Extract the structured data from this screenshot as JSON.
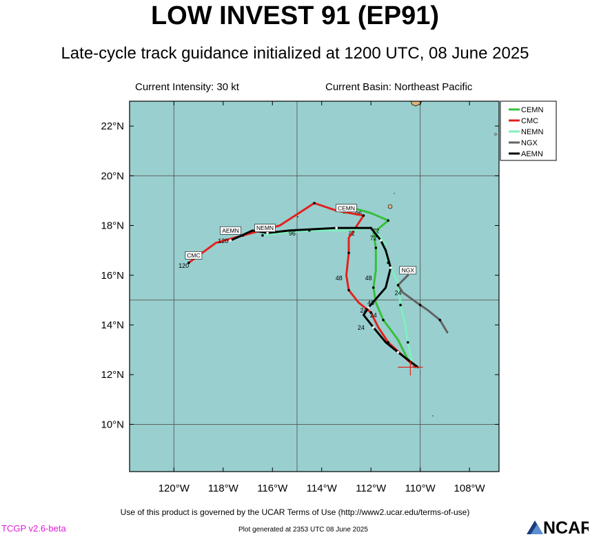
{
  "title": "LOW INVEST 91 (EP91)",
  "subtitle": "Late-cycle track guidance initialized at 1200 UTC, 08 June 2025",
  "header": {
    "intensity": "Current Intensity: 30 kt",
    "basin": "Current Basin: Northeast Pacific"
  },
  "axes": {
    "x_ticks": [
      "120°W",
      "118°W",
      "116°W",
      "114°W",
      "112°W",
      "110°W",
      "108°W"
    ],
    "y_ticks": [
      "22°N",
      "20°N",
      "18°N",
      "16°N",
      "14°N",
      "12°N",
      "10°N"
    ]
  },
  "colors": {
    "ocean": "#99cfcf",
    "land": "#d9b37a",
    "CEMN": "#35c13a",
    "CMC": "#e3211c",
    "NEMN": "#7fefbf",
    "NGX": "#636363",
    "AEMN": "#000000",
    "version": "#e01bd6"
  },
  "initial_position": {
    "lon": -110.4,
    "lat": 12.3
  },
  "tracks": [
    {
      "name": "CEMN",
      "color": "#35c13a",
      "points": [
        [
          -110.1,
          12.3
        ],
        [
          -110.5,
          12.6
        ],
        [
          -110.9,
          13.4
        ],
        [
          -111.5,
          14.2
        ],
        [
          -111.8,
          14.9
        ],
        [
          -111.9,
          15.5
        ],
        [
          -111.8,
          16.2
        ],
        [
          -111.8,
          17.1
        ],
        [
          -111.9,
          17.7
        ],
        [
          -111.3,
          18.2
        ],
        [
          -112.0,
          18.5
        ],
        [
          -112.7,
          18.7
        ],
        [
          -113.1,
          18.5
        ]
      ],
      "time_labels": [
        {
          "text": "48",
          "lon": -112.1,
          "lat": 15.8
        },
        {
          "text": "72",
          "lon": -111.8,
          "lat": 17.7
        },
        {
          "text": "96",
          "lon": -112.5,
          "lat": 18.4
        }
      ]
    },
    {
      "name": "CMC",
      "color": "#e3211c",
      "points": [
        [
          -110.2,
          12.3
        ],
        [
          -111.3,
          13.3
        ],
        [
          -111.7,
          13.9
        ],
        [
          -112.0,
          14.5
        ],
        [
          -112.5,
          14.9
        ],
        [
          -112.9,
          15.4
        ],
        [
          -113.0,
          16.0
        ],
        [
          -112.9,
          16.9
        ],
        [
          -112.9,
          17.5
        ],
        [
          -112.3,
          18.4
        ],
        [
          -113.4,
          18.6
        ],
        [
          -114.3,
          18.9
        ],
        [
          -115.7,
          18.0
        ],
        [
          -117.2,
          17.6
        ],
        [
          -118.3,
          17.3
        ],
        [
          -119.4,
          16.5
        ]
      ],
      "time_labels": [
        {
          "text": "24",
          "lon": -111.9,
          "lat": 14.3
        },
        {
          "text": "48",
          "lon": -113.3,
          "lat": 15.8
        },
        {
          "text": "72",
          "lon": -112.8,
          "lat": 17.6
        },
        {
          "text": "120",
          "lon": -119.6,
          "lat": 16.3
        }
      ]
    },
    {
      "name": "NEMN",
      "color": "#7fefbf",
      "points": [
        [
          -110.3,
          12.4
        ],
        [
          -110.5,
          13.3
        ],
        [
          -110.6,
          14.0
        ],
        [
          -110.8,
          14.8
        ],
        [
          -110.9,
          15.7
        ],
        [
          -111.3,
          16.5
        ],
        [
          -111.5,
          17.4
        ],
        [
          -112.0,
          17.9
        ],
        [
          -113.0,
          17.8
        ],
        [
          -114.5,
          17.8
        ],
        [
          -115.7,
          17.7
        ],
        [
          -116.4,
          17.6
        ]
      ],
      "time_labels": [
        {
          "text": "72",
          "lon": -111.9,
          "lat": 17.4
        },
        {
          "text": "96",
          "lon": -115.2,
          "lat": 17.6
        }
      ]
    },
    {
      "name": "NGX",
      "color": "#636363",
      "points": [
        [
          -108.9,
          13.7
        ],
        [
          -109.2,
          14.2
        ],
        [
          -109.7,
          14.6
        ],
        [
          -110.0,
          14.8
        ],
        [
          -110.7,
          15.3
        ],
        [
          -110.9,
          15.6
        ],
        [
          -110.5,
          16.0
        ]
      ],
      "time_labels": [
        {
          "text": "24",
          "lon": -110.9,
          "lat": 15.2
        }
      ]
    },
    {
      "name": "AEMN",
      "color": "#000000",
      "points": [
        [
          -110.1,
          12.3
        ],
        [
          -110.9,
          12.9
        ],
        [
          -111.4,
          13.3
        ],
        [
          -111.9,
          13.9
        ],
        [
          -112.3,
          14.4
        ],
        [
          -112.1,
          14.7
        ],
        [
          -111.4,
          15.5
        ],
        [
          -111.2,
          16.3
        ],
        [
          -111.4,
          17.0
        ],
        [
          -111.6,
          17.4
        ],
        [
          -112.0,
          17.9
        ],
        [
          -113.4,
          17.9
        ],
        [
          -115.3,
          17.8
        ],
        [
          -116.2,
          17.7
        ],
        [
          -116.8,
          17.8
        ],
        [
          -117.7,
          17.4
        ]
      ],
      "time_labels": [
        {
          "text": "24",
          "lon": -112.3,
          "lat": 14.5
        },
        {
          "text": "24",
          "lon": -112.4,
          "lat": 13.8
        },
        {
          "text": "48",
          "lon": -112.0,
          "lat": 14.8
        },
        {
          "text": "120",
          "lon": -118.0,
          "lat": 17.3
        }
      ]
    }
  ],
  "model_tags": [
    {
      "text": "CMC",
      "lon": -119.2,
      "lat": 16.8
    },
    {
      "text": "AEMN",
      "lon": -117.7,
      "lat": 17.8
    },
    {
      "text": "NEMN",
      "lon": -116.3,
      "lat": 17.9
    },
    {
      "text": "CEMN",
      "lon": -113.0,
      "lat": 18.7
    },
    {
      "text": "NGX",
      "lon": -110.5,
      "lat": 16.2
    }
  ],
  "legend": [
    "CEMN",
    "CMC",
    "NEMN",
    "NGX",
    "AEMN"
  ],
  "footer": {
    "terms": "Use of this product is governed by the UCAR Terms of Use (http://www2.ucar.edu/terms-of-use)",
    "version": "TCGP v2.6-beta",
    "generated": "Plot generated at 2353 UTC   08 June 2025",
    "logo_text": "NCAR"
  }
}
